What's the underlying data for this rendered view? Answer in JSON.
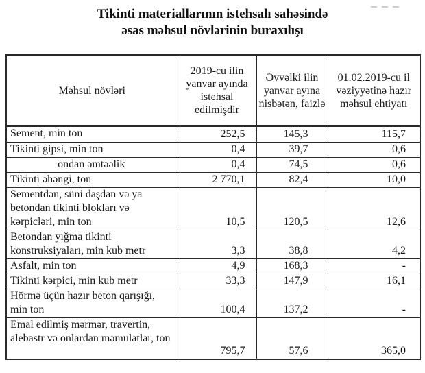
{
  "title": {
    "line1": "Tikinti materiallarının istehsalı sahəsində",
    "line2": "əsas məhsul növlərinin buraxılışı"
  },
  "table": {
    "headers": [
      "Məhsul növləri",
      "2019-cu ilin yanvar ayında istehsal edilmişdir",
      "Əvvəlki ilin yanvar ayına nisbətən, faizlə",
      "01.02.2019-cu il vəziyyətinə hazır məhsul ehtiyatı"
    ],
    "rows": [
      {
        "label": "Sement, min ton",
        "produced": "252,5",
        "vs_prev": "145,3",
        "stock": "115,7"
      },
      {
        "label": "Tikinti gipsi, min ton",
        "produced": "0,4",
        "vs_prev": "39,7",
        "stock": "0,6"
      },
      {
        "label": "ondan əmtəəlik",
        "produced": "0,4",
        "vs_prev": "74,5",
        "stock": "0,6"
      },
      {
        "label": "Tikinti əhəngi, ton",
        "produced": "2 770,1",
        "vs_prev": "82,4",
        "stock": "10,0"
      },
      {
        "label": "Sementdən, süni daşdan və ya betondan tikinti blokları və kərpicləri, min ton",
        "produced": "10,5",
        "vs_prev": "120,5",
        "stock": "12,6"
      },
      {
        "label": "Betondan yığma tikinti konstruksiyaları, min kub metr",
        "produced": "3,3",
        "vs_prev": "38,8",
        "stock": "4,2"
      },
      {
        "label": "Asfalt, min ton",
        "produced": "4,9",
        "vs_prev": "168,3",
        "stock": "-"
      },
      {
        "label": "Tikinti kərpici, min kub metr",
        "produced": "33,3",
        "vs_prev": "147,9",
        "stock": "16,1"
      },
      {
        "label": "Hörmə üçün hazır beton qarışığı, min ton",
        "produced": "100,4",
        "vs_prev": "137,2",
        "stock": "-"
      },
      {
        "label": "Emal edilmiş mərmər, travertin, alebastr və onlardan məmulatlar, ton",
        "produced": "795,7",
        "vs_prev": "57,6",
        "stock": "365,0"
      }
    ]
  }
}
